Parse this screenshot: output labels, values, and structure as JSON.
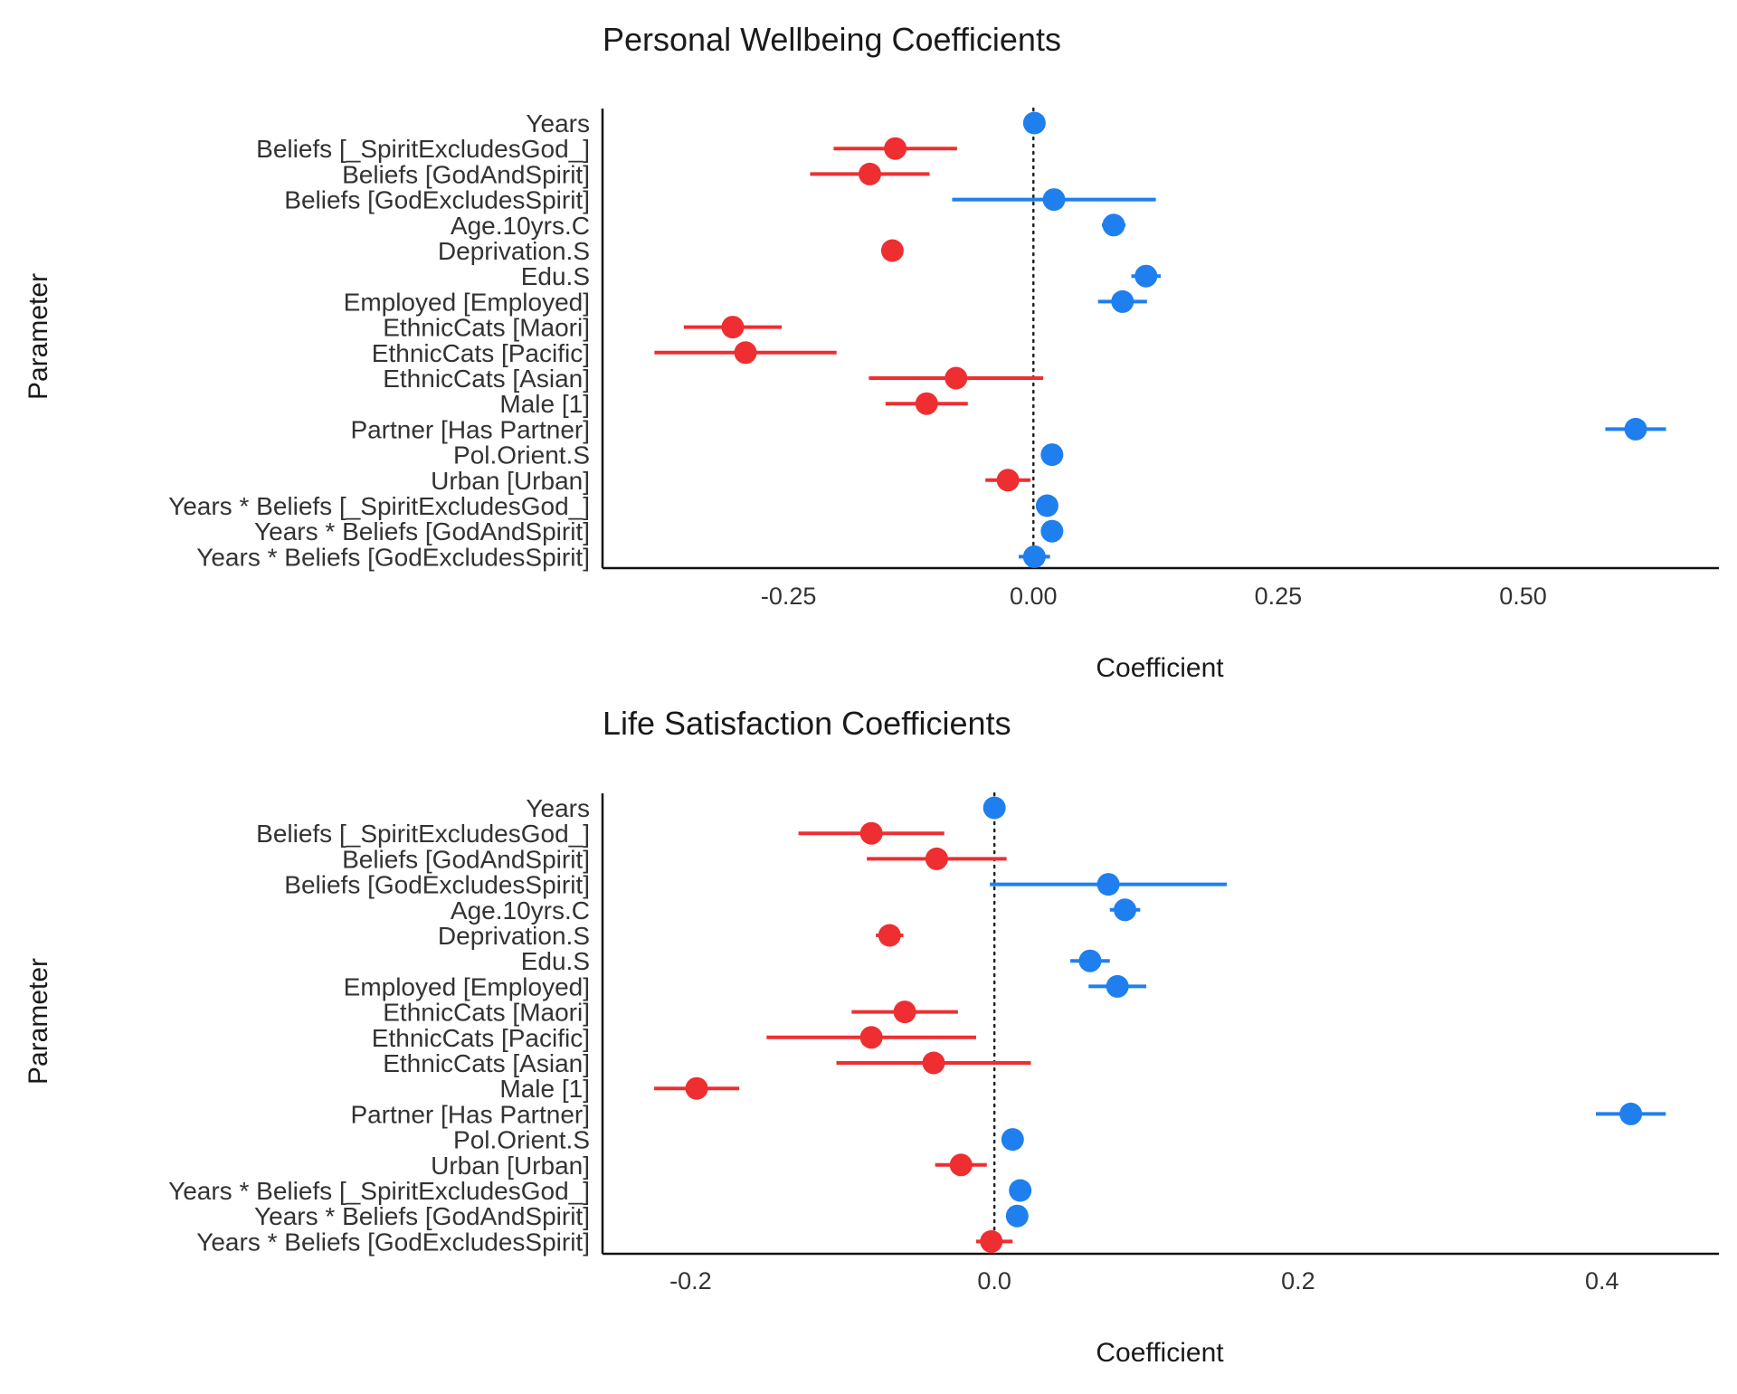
{
  "chart_data": [
    {
      "type": "forest",
      "title": "Personal Wellbeing Coefficients",
      "xlabel": "Coefficient",
      "ylabel": "Parameter",
      "xlim": [
        -0.44,
        0.7
      ],
      "xticks": [
        -0.25,
        0.0,
        0.25,
        0.5
      ],
      "xtick_labels": [
        "-0.25",
        "0.00",
        "0.25",
        "0.50"
      ],
      "reference_line": 0,
      "parameters": [
        "Years",
        "Beliefs [_SpiritExcludesGod_]",
        "Beliefs [GodAndSpirit]",
        "Beliefs [GodExcludesSpirit]",
        "Age.10yrs.C",
        "Deprivation.S",
        "Edu.S",
        "Employed [Employed]",
        "EthnicCats [Maori]",
        "EthnicCats [Pacific]",
        "EthnicCats [Asian]",
        "Male [1]",
        "Partner [Has Partner]",
        "Pol.Orient.S",
        "Urban [Urban]",
        "Years * Beliefs [_SpiritExcludesGod_]",
        "Years * Beliefs [GodAndSpirit]",
        "Years * Beliefs [GodExcludesSpirit]"
      ],
      "estimates": [
        0.001,
        -0.141,
        -0.167,
        0.021,
        0.082,
        -0.144,
        0.115,
        0.091,
        -0.307,
        -0.294,
        -0.079,
        -0.109,
        0.615,
        0.019,
        -0.026,
        0.014,
        0.019,
        0.001
      ],
      "ci_low": [
        -0.004,
        -0.204,
        -0.228,
        -0.083,
        0.07,
        -0.155,
        0.1,
        0.066,
        -0.357,
        -0.387,
        -0.168,
        -0.151,
        0.584,
        0.014,
        -0.049,
        0.009,
        0.014,
        -0.015
      ],
      "ci_high": [
        0.006,
        -0.078,
        -0.106,
        0.125,
        0.094,
        -0.133,
        0.13,
        0.116,
        -0.257,
        -0.201,
        0.01,
        -0.067,
        0.646,
        0.024,
        -0.003,
        0.019,
        0.024,
        0.017
      ],
      "colors": {
        "negative": "#ee2e31",
        "positive": "#1f7fee"
      }
    },
    {
      "type": "forest",
      "title": "Life Satisfaction Coefficients",
      "xlabel": "Coefficient",
      "ylabel": "Parameter",
      "xlim": [
        -0.258,
        0.477
      ],
      "xticks": [
        -0.2,
        0.0,
        0.2,
        0.4
      ],
      "xtick_labels": [
        "-0.2",
        "0.0",
        "0.2",
        "0.4"
      ],
      "reference_line": 0,
      "parameters": [
        "Years",
        "Beliefs [_SpiritExcludesGod_]",
        "Beliefs [GodAndSpirit]",
        "Beliefs [GodExcludesSpirit]",
        "Age.10yrs.C",
        "Deprivation.S",
        "Edu.S",
        "Employed [Employed]",
        "EthnicCats [Maori]",
        "EthnicCats [Pacific]",
        "EthnicCats [Asian]",
        "Male [1]",
        "Partner [Has Partner]",
        "Pol.Orient.S",
        "Urban [Urban]",
        "Years * Beliefs [_SpiritExcludesGod_]",
        "Years * Beliefs [GodAndSpirit]",
        "Years * Beliefs [GodExcludesSpirit]"
      ],
      "estimates": [
        0.0,
        -0.081,
        -0.038,
        0.075,
        0.086,
        -0.069,
        0.063,
        0.081,
        -0.059,
        -0.081,
        -0.04,
        -0.196,
        0.419,
        0.012,
        -0.022,
        0.017,
        0.015,
        -0.002
      ],
      "ci_low": [
        -0.003,
        -0.129,
        -0.084,
        -0.003,
        0.076,
        -0.078,
        0.05,
        0.062,
        -0.094,
        -0.15,
        -0.104,
        -0.224,
        0.396,
        0.008,
        -0.039,
        0.013,
        0.011,
        -0.012
      ],
      "ci_high": [
        0.003,
        -0.033,
        0.008,
        0.153,
        0.096,
        -0.06,
        0.076,
        0.1,
        -0.024,
        -0.012,
        0.024,
        -0.168,
        0.442,
        0.016,
        -0.005,
        0.021,
        0.019,
        0.012
      ],
      "colors": {
        "negative": "#ee2e31",
        "positive": "#1f7fee"
      }
    }
  ]
}
